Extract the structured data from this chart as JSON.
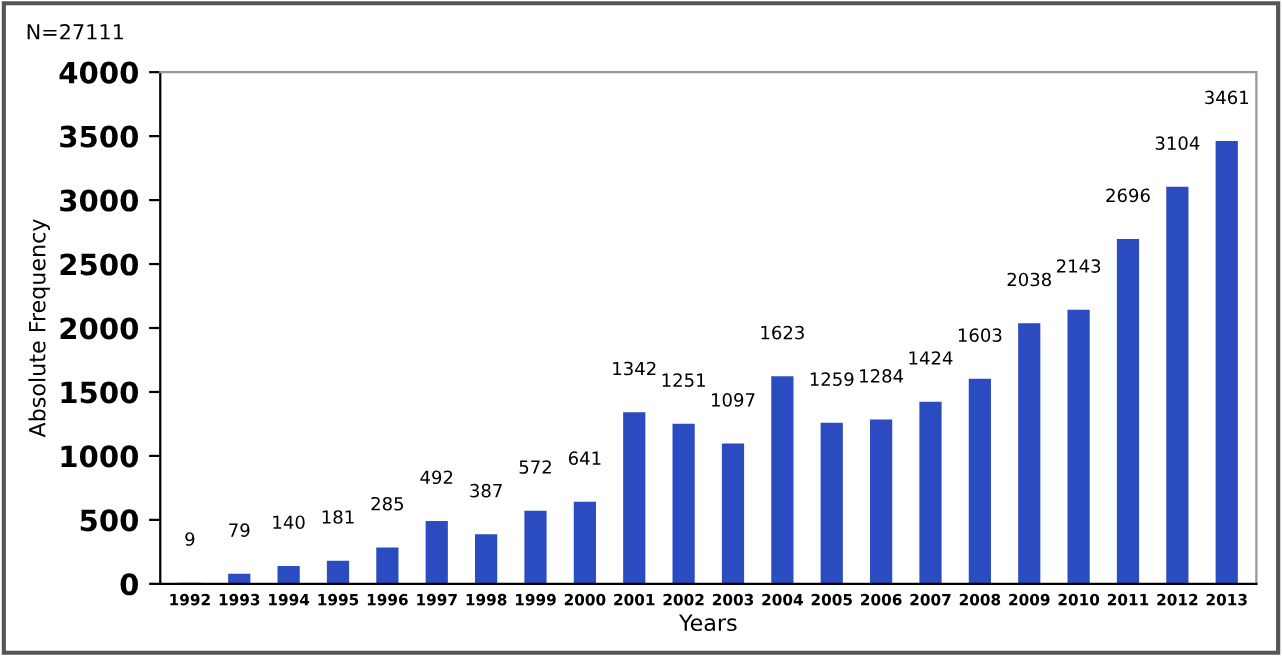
{
  "chart_data": {
    "type": "bar",
    "xlabel": "Years",
    "ylabel": "Absolute Frequency",
    "annotations": [
      "N=27111"
    ],
    "categories": [
      "1992",
      "1993",
      "1994",
      "1995",
      "1996",
      "1997",
      "1998",
      "1999",
      "2000",
      "2001",
      "2002",
      "2003",
      "2004",
      "2005",
      "2006",
      "2007",
      "2008",
      "2009",
      "2010",
      "2011",
      "2012",
      "2013"
    ],
    "values": [
      9,
      79,
      140,
      181,
      285,
      492,
      387,
      572,
      641,
      1342,
      1251,
      1097,
      1623,
      1259,
      1284,
      1424,
      1603,
      2038,
      2143,
      2696,
      3104,
      3461
    ],
    "color": "#2a4cc0",
    "ylim": [
      0,
      4000
    ],
    "yticks": [
      0,
      500,
      1000,
      1500,
      2000,
      2500,
      3000,
      3500,
      4000
    ],
    "grid": false,
    "legend": false,
    "data_labels": true
  }
}
